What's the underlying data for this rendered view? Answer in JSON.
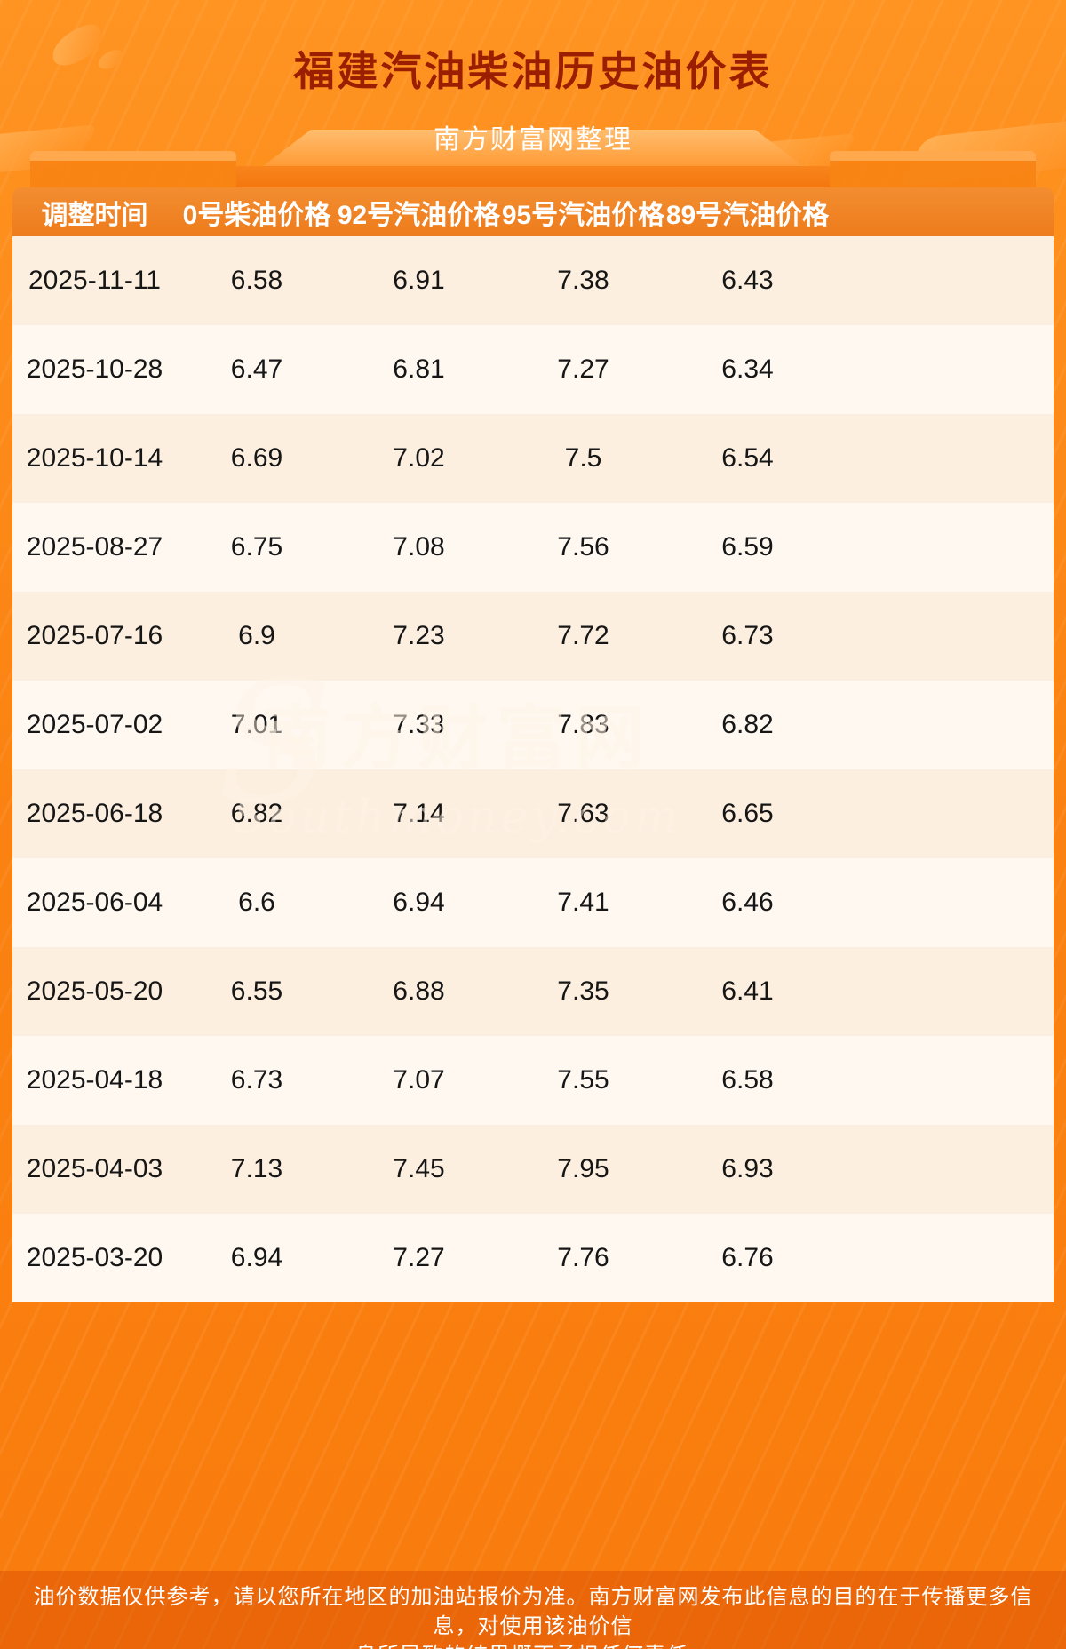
{
  "page": {
    "title": "福建汽油柴油历史油价表",
    "subtitle": "南方财富网整理"
  },
  "chart_data": {
    "type": "table",
    "title": "福建汽油柴油历史油价表",
    "headers": [
      "调整时间",
      "0号柴油价格",
      "92号汽油价格",
      "95号汽油价格",
      "89号汽油价格"
    ],
    "rows": [
      [
        "2025-11-11",
        "6.58",
        "6.91",
        "7.38",
        "6.43"
      ],
      [
        "2025-10-28",
        "6.47",
        "6.81",
        "7.27",
        "6.34"
      ],
      [
        "2025-10-14",
        "6.69",
        "7.02",
        "7.5",
        "6.54"
      ],
      [
        "2025-08-27",
        "6.75",
        "7.08",
        "7.56",
        "6.59"
      ],
      [
        "2025-07-16",
        "6.9",
        "7.23",
        "7.72",
        "6.73"
      ],
      [
        "2025-07-02",
        "7.01",
        "7.33",
        "7.83",
        "6.82"
      ],
      [
        "2025-06-18",
        "6.82",
        "7.14",
        "7.63",
        "6.65"
      ],
      [
        "2025-06-04",
        "6.6",
        "6.94",
        "7.41",
        "6.46"
      ],
      [
        "2025-05-20",
        "6.55",
        "6.88",
        "7.35",
        "6.41"
      ],
      [
        "2025-04-18",
        "6.73",
        "7.07",
        "7.55",
        "6.58"
      ],
      [
        "2025-04-03",
        "7.13",
        "7.45",
        "7.95",
        "6.93"
      ],
      [
        "2025-03-20",
        "6.94",
        "7.27",
        "7.76",
        "6.76"
      ]
    ]
  },
  "watermark": {
    "initial": "S",
    "cn": "南方财富网",
    "en": "Southmoney.com"
  },
  "footer": {
    "line1": "油价数据仅供参考，请以您所在地区的加油站报价为准。南方财富网发布此信息的目的在于传播更多信息，对使用该油价信",
    "line2": "息所导致的结果概不承担任何责任。"
  },
  "colors": {
    "background": "#fb8312",
    "header_bar": "#ef7e1d",
    "title_text": "#9c1e00",
    "row_odd": "#fcefe0",
    "row_even": "#fef8f1",
    "body_text": "#161616",
    "footer_band": "rgba(205,62,0,0.35)"
  }
}
